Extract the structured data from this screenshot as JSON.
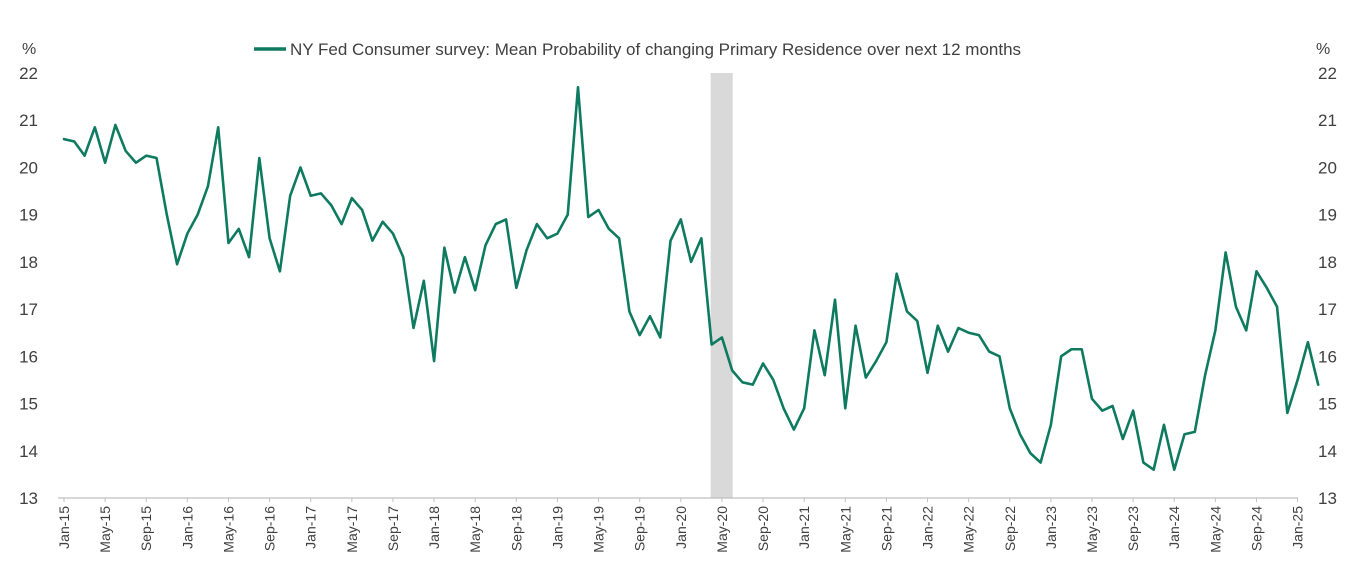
{
  "chart_data": {
    "type": "line",
    "title": "",
    "legend_position": "top-center",
    "legend": "NY Fed Consumer survey: Mean Probability of changing Primary Residence over next 12 months",
    "y_unit_left": "%",
    "y_unit_right": "%",
    "ylim": [
      13,
      22
    ],
    "yticks": [
      13,
      14,
      15,
      16,
      17,
      18,
      19,
      20,
      21,
      22
    ],
    "grid": false,
    "line_color": "#0e7a5f",
    "shade_color": "#d9d9d9",
    "shaded_region": {
      "start": "Apr-20",
      "end": "May-20",
      "start_index": 63,
      "end_index": 65
    },
    "x_tick_labels": [
      "Jan-15",
      "May-15",
      "Sep-15",
      "Jan-16",
      "May-16",
      "Sep-16",
      "Jan-17",
      "May-17",
      "Sep-17",
      "Jan-18",
      "May-18",
      "Sep-18",
      "Jan-19",
      "May-19",
      "Sep-19",
      "Jan-20",
      "May-20",
      "Sep-20",
      "Jan-21",
      "May-21",
      "Sep-21",
      "Jan-22",
      "May-22",
      "Sep-22",
      "Jan-23",
      "May-23",
      "Sep-23",
      "Jan-24",
      "May-24",
      "Sep-24",
      "Jan-25"
    ],
    "x_start": "Jan-15",
    "x_end": "Jun-25",
    "series": [
      {
        "name": "NY Fed Consumer survey: Mean Probability of changing Primary Residence over next 12 months",
        "values": [
          20.6,
          20.55,
          20.25,
          20.85,
          20.1,
          20.9,
          20.35,
          20.1,
          20.25,
          20.2,
          19.0,
          17.95,
          18.6,
          19.0,
          19.6,
          20.85,
          18.4,
          18.7,
          18.1,
          20.2,
          18.5,
          17.8,
          19.4,
          20.0,
          19.4,
          19.45,
          19.2,
          18.8,
          19.35,
          19.1,
          18.45,
          18.85,
          18.6,
          18.1,
          16.6,
          17.6,
          15.9,
          18.3,
          17.35,
          18.1,
          17.4,
          18.35,
          18.8,
          18.9,
          17.45,
          18.25,
          18.8,
          18.5,
          18.6,
          19.0,
          21.7,
          18.95,
          19.1,
          18.7,
          18.5,
          16.95,
          16.45,
          16.85,
          16.4,
          18.45,
          18.9,
          18.0,
          18.5,
          16.25,
          16.4,
          15.7,
          15.45,
          15.4,
          15.85,
          15.5,
          14.9,
          14.45,
          14.9,
          16.55,
          15.6,
          17.2,
          14.9,
          16.65,
          15.55,
          15.9,
          16.3,
          17.75,
          16.95,
          16.75,
          15.65,
          16.65,
          16.1,
          16.6,
          16.5,
          16.45,
          16.1,
          16.0,
          14.9,
          14.35,
          13.95,
          13.75,
          14.55,
          16.0,
          16.15,
          16.15,
          15.1,
          14.85,
          14.95,
          14.25,
          14.85,
          13.75,
          13.6,
          14.55,
          13.6,
          14.35,
          14.4,
          15.6,
          16.55,
          18.2,
          17.05,
          16.55,
          17.8,
          17.45,
          17.05,
          14.8,
          15.5,
          16.3,
          15.4
        ]
      }
    ]
  }
}
